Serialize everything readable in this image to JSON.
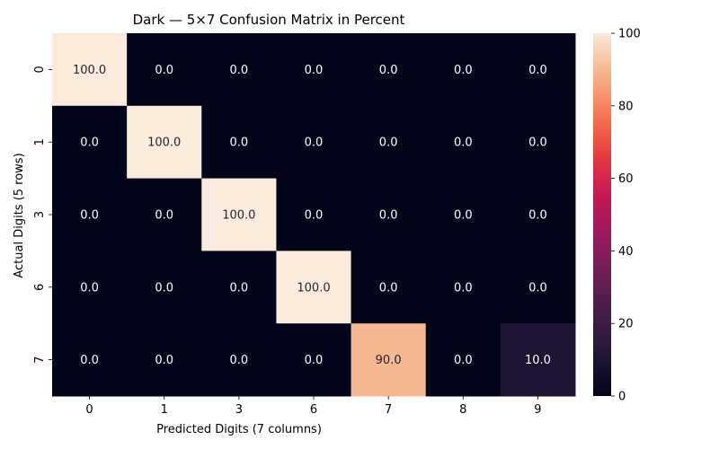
{
  "chart_data": {
    "type": "heatmap",
    "title": "Dark — 5×7 Confusion Matrix in Percent",
    "xlabel": "Predicted Digits (7 columns)",
    "ylabel": "Actual Digits (5 rows)",
    "x_categories": [
      "0",
      "1",
      "3",
      "6",
      "7",
      "8",
      "9"
    ],
    "y_categories": [
      "0",
      "1",
      "3",
      "6",
      "7"
    ],
    "values": [
      [
        100.0,
        0.0,
        0.0,
        0.0,
        0.0,
        0.0,
        0.0
      ],
      [
        0.0,
        100.0,
        0.0,
        0.0,
        0.0,
        0.0,
        0.0
      ],
      [
        0.0,
        0.0,
        100.0,
        0.0,
        0.0,
        0.0,
        0.0
      ],
      [
        0.0,
        0.0,
        0.0,
        100.0,
        0.0,
        0.0,
        0.0
      ],
      [
        0.0,
        0.0,
        0.0,
        0.0,
        90.0,
        0.0,
        10.0
      ]
    ],
    "value_format": "0.0",
    "colorbar": {
      "min": 0,
      "max": 100,
      "ticks": [
        0,
        20,
        40,
        60,
        80,
        100
      ]
    },
    "colormap_stops": [
      [
        "#03051a",
        0.0
      ],
      [
        "#2b1a3e",
        0.15
      ],
      [
        "#4c1d4b",
        0.25
      ],
      [
        "#7a1d58",
        0.37
      ],
      [
        "#a3195b",
        0.47
      ],
      [
        "#cb1b4f",
        0.57
      ],
      [
        "#e83f3f",
        0.67
      ],
      [
        "#f26a4c",
        0.75
      ],
      [
        "#f6956c",
        0.83
      ],
      [
        "#f6bd98",
        0.91
      ],
      [
        "#faebdd",
        1.0
      ]
    ]
  }
}
